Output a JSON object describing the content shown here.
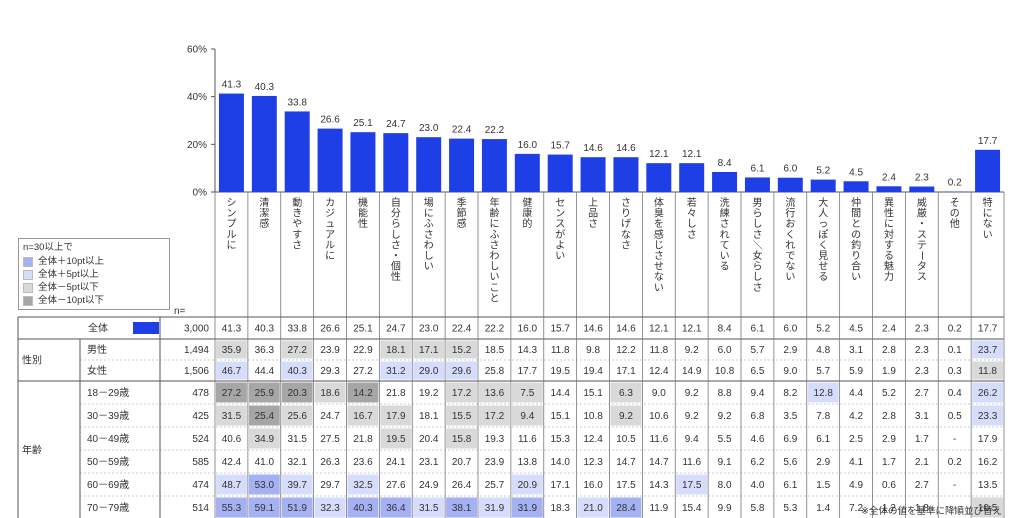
{
  "legend": {
    "title": "n=30以上で",
    "items": [
      {
        "label": "全体＋10pt以上",
        "color": "#a4b2f3"
      },
      {
        "label": "全体＋5pt以上",
        "color": "#d6dcfb"
      },
      {
        "label": "全体－5pt以下",
        "color": "#d9d9d9"
      },
      {
        "label": "全体－10pt以下",
        "color": "#a6a6a6"
      }
    ]
  },
  "note": "※全体の値を基準に降順並び替え",
  "n_label": "n=",
  "chart_data": {
    "type": "bar",
    "bar_color": "#1f3fe6",
    "ylim": [
      0,
      60
    ],
    "yticks": [
      "0%",
      "20%",
      "40%",
      "60%"
    ],
    "ytick_values": [
      0,
      20,
      40,
      60
    ],
    "categories": [
      "シンプルに",
      "清潔感",
      "動きやすさ",
      "カジュアルに",
      "機能性",
      "自分らしさ・個性",
      "場にふさわしい",
      "季節感",
      "年齢にふさわしいこと",
      "健康的",
      "センスがよい",
      "上品さ",
      "さりげなさ",
      "体臭を感じさせない",
      "若々しさ",
      "洗練されている",
      "男らしさ／女らしさ",
      "流行おくれでない",
      "大人っぽく見せる",
      "仲間との釣り合い",
      "異性に対する魅力",
      "威厳・ステータス",
      "その他",
      "特にない"
    ],
    "values": [
      41.3,
      40.3,
      33.8,
      26.6,
      25.1,
      24.7,
      23.0,
      22.4,
      22.2,
      16.0,
      15.7,
      14.6,
      14.6,
      12.1,
      12.1,
      8.4,
      6.1,
      6.0,
      5.2,
      4.5,
      2.4,
      2.3,
      0.2,
      17.7
    ],
    "value_labels": [
      "41.3",
      "40.3",
      "33.8",
      "26.6",
      "25.1",
      "24.7",
      "23.0",
      "22.4",
      "22.2",
      "16.0",
      "15.7",
      "14.6",
      "14.6",
      "12.1",
      "12.1",
      "8.4",
      "6.1",
      "6.0",
      "5.2",
      "4.5",
      "2.4",
      "2.3",
      "0.2",
      "17.7"
    ]
  },
  "table": {
    "rows": [
      {
        "group": "",
        "label": "全体",
        "n": "3,000",
        "total": true,
        "values": [
          "41.3",
          "40.3",
          "33.8",
          "26.6",
          "25.1",
          "24.7",
          "23.0",
          "22.4",
          "22.2",
          "16.0",
          "15.7",
          "14.6",
          "14.6",
          "12.1",
          "12.1",
          "8.4",
          "6.1",
          "6.0",
          "5.2",
          "4.5",
          "2.4",
          "2.3",
          "0.2",
          "17.7"
        ],
        "shades": [
          "",
          "",
          "",
          "",
          "",
          "",
          "",
          "",
          "",
          "",
          "",
          "",
          "",
          "",
          "",
          "",
          "",
          "",
          "",
          "",
          "",
          "",
          "",
          ""
        ]
      },
      {
        "group": "性別",
        "label": "男性",
        "n": "1,494",
        "values": [
          "35.9",
          "36.3",
          "27.2",
          "23.9",
          "22.9",
          "18.1",
          "17.1",
          "15.2",
          "18.5",
          "14.3",
          "11.8",
          "9.8",
          "12.2",
          "11.8",
          "9.2",
          "6.0",
          "5.7",
          "2.9",
          "4.8",
          "3.1",
          "2.8",
          "2.3",
          "0.1",
          "23.7"
        ],
        "shades": [
          "m5",
          "",
          "m5",
          "",
          "",
          "m5",
          "m5",
          "m5",
          "",
          "",
          "",
          "",
          "",
          "",
          "",
          "",
          "",
          "",
          "",
          "",
          "",
          "",
          "",
          "p5"
        ]
      },
      {
        "group": "",
        "label": "女性",
        "n": "1,506",
        "values": [
          "46.7",
          "44.4",
          "40.3",
          "29.3",
          "27.2",
          "31.2",
          "29.0",
          "29.6",
          "25.8",
          "17.7",
          "19.5",
          "19.4",
          "17.1",
          "12.4",
          "14.9",
          "10.8",
          "6.5",
          "9.0",
          "5.7",
          "5.9",
          "1.9",
          "2.3",
          "0.3",
          "11.8"
        ],
        "shades": [
          "p5",
          "",
          "p5",
          "",
          "",
          "p5",
          "p5",
          "p5",
          "",
          "",
          "",
          "",
          "",
          "",
          "",
          "",
          "",
          "",
          "",
          "",
          "",
          "",
          "",
          "m5"
        ]
      },
      {
        "group": "年齢",
        "label": "18－29歳",
        "n": "478",
        "values": [
          "27.2",
          "25.9",
          "20.3",
          "18.6",
          "14.2",
          "21.8",
          "19.2",
          "17.2",
          "13.6",
          "7.5",
          "14.4",
          "15.1",
          "6.3",
          "9.0",
          "9.2",
          "8.8",
          "9.4",
          "8.2",
          "12.8",
          "4.4",
          "5.2",
          "2.7",
          "0.4",
          "26.2"
        ],
        "shades": [
          "m10",
          "m10",
          "m10",
          "m5",
          "m10",
          "",
          "",
          "m5",
          "m5",
          "m5",
          "",
          "",
          "m5",
          "",
          "",
          "",
          "",
          "",
          "p5",
          "",
          "",
          "",
          "",
          "p5"
        ]
      },
      {
        "group": "",
        "label": "30－39歳",
        "n": "425",
        "values": [
          "31.5",
          "25.4",
          "25.6",
          "24.7",
          "16.7",
          "17.9",
          "18.1",
          "15.5",
          "17.2",
          "9.4",
          "15.1",
          "10.8",
          "9.2",
          "10.6",
          "9.2",
          "9.2",
          "6.8",
          "3.5",
          "7.8",
          "4.2",
          "2.8",
          "3.1",
          "0.5",
          "23.3"
        ],
        "shades": [
          "m5",
          "m10",
          "m5",
          "",
          "m5",
          "m5",
          "",
          "m5",
          "m5",
          "m5",
          "",
          "",
          "m5",
          "",
          "",
          "",
          "",
          "",
          "",
          "",
          "",
          "",
          "",
          "p5"
        ]
      },
      {
        "group": "",
        "label": "40－49歳",
        "n": "524",
        "values": [
          "40.6",
          "34.9",
          "31.5",
          "27.5",
          "21.8",
          "19.5",
          "20.4",
          "15.8",
          "19.3",
          "11.6",
          "15.3",
          "12.4",
          "10.5",
          "11.6",
          "9.4",
          "5.5",
          "4.6",
          "6.9",
          "6.1",
          "2.5",
          "2.9",
          "1.7",
          "-",
          "17.9"
        ],
        "shades": [
          "",
          "m5",
          "",
          "",
          "",
          "m5",
          "",
          "m5",
          "",
          "",
          "",
          "",
          "",
          "",
          "",
          "",
          "",
          "",
          "",
          "",
          "",
          "",
          "",
          ""
        ]
      },
      {
        "group": "",
        "label": "50－59歳",
        "n": "585",
        "values": [
          "42.4",
          "41.0",
          "32.1",
          "26.3",
          "23.6",
          "24.1",
          "23.1",
          "20.7",
          "23.9",
          "13.8",
          "14.0",
          "12.3",
          "14.7",
          "14.7",
          "11.6",
          "9.1",
          "6.2",
          "5.6",
          "2.9",
          "4.1",
          "1.7",
          "2.1",
          "0.2",
          "16.2"
        ],
        "shades": [
          "",
          "",
          "",
          "",
          "",
          "",
          "",
          "",
          "",
          "",
          "",
          "",
          "",
          "",
          "",
          "",
          "",
          "",
          "",
          "",
          "",
          "",
          "",
          ""
        ]
      },
      {
        "group": "",
        "label": "60－69歳",
        "n": "474",
        "values": [
          "48.7",
          "53.0",
          "39.7",
          "29.7",
          "32.5",
          "27.6",
          "24.9",
          "26.4",
          "25.7",
          "20.9",
          "17.1",
          "16.0",
          "17.5",
          "14.3",
          "17.5",
          "8.0",
          "4.0",
          "6.1",
          "1.5",
          "4.9",
          "0.6",
          "2.7",
          "-",
          "13.5"
        ],
        "shades": [
          "p5",
          "p10",
          "p5",
          "",
          "p5",
          "",
          "",
          "",
          "",
          "p5",
          "",
          "",
          "",
          "",
          "p5",
          "",
          "",
          "",
          "",
          "",
          "",
          "",
          "",
          ""
        ]
      },
      {
        "group": "",
        "label": "70－79歳",
        "n": "514",
        "values": [
          "55.3",
          "59.1",
          "51.9",
          "32.3",
          "40.3",
          "36.4",
          "31.5",
          "38.1",
          "31.9",
          "31.9",
          "18.3",
          "21.0",
          "28.4",
          "11.9",
          "15.4",
          "9.9",
          "5.8",
          "5.3",
          "1.4",
          "7.2",
          "1.2",
          "1.8",
          "-",
          "10.5"
        ],
        "shades": [
          "p10",
          "p10",
          "p10",
          "p5",
          "p10",
          "p10",
          "p5",
          "p10",
          "p5",
          "p10",
          "",
          "p5",
          "p10",
          "",
          "",
          "",
          "",
          "",
          "",
          "",
          "",
          "",
          "",
          "m5"
        ]
      }
    ]
  }
}
